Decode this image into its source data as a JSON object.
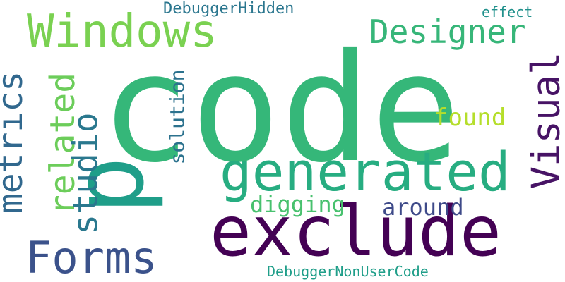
{
  "words": [
    {
      "id": "code",
      "text": "code",
      "color": "#35b779"
    },
    {
      "id": "exclude",
      "text": "exclude",
      "color": "#440154"
    },
    {
      "id": "p",
      "text": "p",
      "color": "#1f9e89"
    },
    {
      "id": "generated",
      "text": "generated",
      "color": "#27ad81"
    },
    {
      "id": "windows",
      "text": "Windows",
      "color": "#7ad151"
    },
    {
      "id": "designer",
      "text": "Designer",
      "color": "#37b679"
    },
    {
      "id": "forms",
      "text": "Forms",
      "color": "#3b528b"
    },
    {
      "id": "visual",
      "text": "Visual",
      "color": "#471365"
    },
    {
      "id": "metrics",
      "text": "metrics",
      "color": "#31688e"
    },
    {
      "id": "related",
      "text": "related",
      "color": "#6ccd5a"
    },
    {
      "id": "studio",
      "text": "studio",
      "color": "#2a788e"
    },
    {
      "id": "solution",
      "text": "solution",
      "color": "#2c728e"
    },
    {
      "id": "found",
      "text": "found",
      "color": "#b5de2b"
    },
    {
      "id": "digging",
      "text": "digging",
      "color": "#48c16e"
    },
    {
      "id": "around",
      "text": "around",
      "color": "#3e4a89"
    },
    {
      "id": "debuggerhidden",
      "text": "DebuggerHidden",
      "color": "#2a768e"
    },
    {
      "id": "effect",
      "text": "effect",
      "color": "#21918c"
    },
    {
      "id": "debuggernonusercode",
      "text": "DebuggerNonUserCode",
      "color": "#1f9e89"
    }
  ]
}
